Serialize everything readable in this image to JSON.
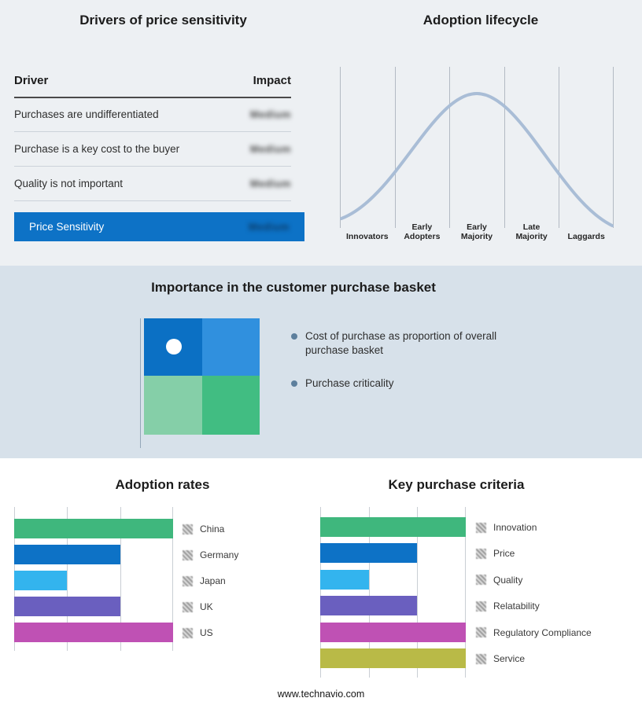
{
  "footer": {
    "url": "www.technavio.com"
  },
  "colors": {
    "banner_blue": "#0d72c6",
    "curve": "#a9bdd6",
    "bullet": "#5d7f9d"
  },
  "drivers_panel": {
    "title": "Drivers of price sensitivity",
    "columns": {
      "driver": "Driver",
      "impact": "Impact"
    },
    "rows": [
      {
        "driver": "Purchases are undifferentiated",
        "impact": "Medium"
      },
      {
        "driver": "Purchase is a key cost to the buyer",
        "impact": "Medium"
      },
      {
        "driver": "Quality is not important",
        "impact": "Medium"
      }
    ],
    "summary_row": {
      "label": "Price Sensitivity",
      "impact": "Medium"
    }
  },
  "lifecycle_panel": {
    "title": "Adoption lifecycle",
    "stages": [
      [
        "Innovators"
      ],
      [
        "Early",
        "Adopters"
      ],
      [
        "Early",
        "Majority"
      ],
      [
        "Late",
        "Majority"
      ],
      [
        "Laggards"
      ]
    ]
  },
  "basket_panel": {
    "title": "Importance in the customer purchase basket",
    "bullets": [
      "Cost of purchase as proportion of overall purchase basket",
      "Purchase criticality"
    ],
    "quadrants": [
      "#0b70c4",
      "#3090de",
      "#85cfa8",
      "#41bd82"
    ]
  },
  "chart_data": [
    {
      "type": "line",
      "name": "adoption-lifecycle",
      "title": "Adoption lifecycle",
      "shape": "bell-curve",
      "x": [
        "Innovators",
        "Early Adopters",
        "Early Majority",
        "Late Majority",
        "Laggards"
      ],
      "curve_color": "#a9bdd6",
      "grid": true,
      "legend": false
    },
    {
      "type": "bar",
      "name": "adoption-rates",
      "title": "Adoption rates",
      "orientation": "horizontal",
      "categories": [
        "China",
        "Germany",
        "Japan",
        "UK",
        "US"
      ],
      "values": [
        3,
        2,
        1,
        2,
        3
      ],
      "xlim": [
        0,
        3
      ],
      "colors": [
        "#3fb77d",
        "#0d72c6",
        "#33b4ee",
        "#6a5fbf",
        "#bf51b4"
      ],
      "grid": true,
      "legend_position": "right"
    },
    {
      "type": "bar",
      "name": "key-purchase-criteria",
      "title": "Key purchase criteria",
      "orientation": "horizontal",
      "categories": [
        "Innovation",
        "Price",
        "Quality",
        "Relatability",
        "Regulatory Compliance",
        "Service"
      ],
      "values": [
        3,
        2,
        1,
        2,
        3,
        3
      ],
      "xlim": [
        0,
        3
      ],
      "colors": [
        "#3fb77d",
        "#0d72c6",
        "#33b4ee",
        "#6a5fbf",
        "#bf51b4",
        "#b9ba47"
      ],
      "grid": true,
      "legend_position": "right"
    }
  ]
}
